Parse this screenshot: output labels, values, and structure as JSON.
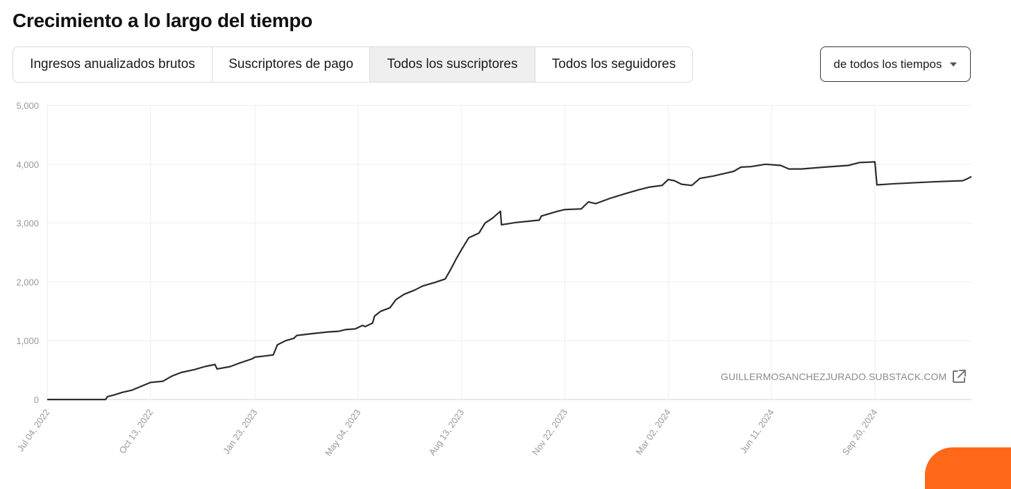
{
  "page": {
    "title": "Crecimiento a lo largo del tiempo"
  },
  "tabs": [
    {
      "label": "Ingresos anualizados brutos",
      "active": false
    },
    {
      "label": "Suscriptores de pago",
      "active": false
    },
    {
      "label": "Todos los suscriptores",
      "active": true
    },
    {
      "label": "Todos los seguidores",
      "active": false
    }
  ],
  "range_select": {
    "selected": "de todos los tiempos"
  },
  "watermark": {
    "text": "GUILLERMOSANCHEZJURADO.SUBSTACK.COM",
    "icon": "external-link-icon"
  },
  "colors": {
    "line": "#2b2b2b",
    "grid": "#eeeeee",
    "accent": "#ff6719",
    "tick_text": "#999999"
  },
  "chart_data": {
    "type": "line",
    "title": "",
    "xlabel": "",
    "ylabel": "",
    "ylim": [
      0,
      5000
    ],
    "y_ticks": [
      "0",
      "1,000",
      "2,000",
      "3,000",
      "4,000",
      "5,000"
    ],
    "x_ticks": [
      "Jul 04, 2022",
      "Oct 13, 2022",
      "Jan 23, 2023",
      "May 04, 2023",
      "Aug 13, 2023",
      "Nov 22, 2023",
      "Mar 02, 2024",
      "Jun 11, 2024",
      "Sep 20, 2024"
    ],
    "grid": true,
    "series": [
      {
        "values_note": "x are dates, y subscriber counts",
        "points": [
          [
            "2022-07-04",
            0
          ],
          [
            "2022-08-01",
            0
          ],
          [
            "2022-08-30",
            0
          ],
          [
            "2022-09-01",
            50
          ],
          [
            "2022-09-08",
            80
          ],
          [
            "2022-09-15",
            120
          ],
          [
            "2022-09-25",
            160
          ],
          [
            "2022-10-06",
            240
          ],
          [
            "2022-10-13",
            290
          ],
          [
            "2022-10-25",
            310
          ],
          [
            "2022-11-03",
            400
          ],
          [
            "2022-11-12",
            460
          ],
          [
            "2022-11-25",
            510
          ],
          [
            "2022-12-05",
            560
          ],
          [
            "2022-12-15",
            595
          ],
          [
            "2022-12-17",
            520
          ],
          [
            "2022-12-30",
            560
          ],
          [
            "2023-01-08",
            620
          ],
          [
            "2023-01-20",
            690
          ],
          [
            "2023-01-23",
            720
          ],
          [
            "2023-02-02",
            740
          ],
          [
            "2023-02-10",
            760
          ],
          [
            "2023-02-14",
            930
          ],
          [
            "2023-02-22",
            1000
          ],
          [
            "2023-03-02",
            1040
          ],
          [
            "2023-03-05",
            1090
          ],
          [
            "2023-03-20",
            1120
          ],
          [
            "2023-04-05",
            1150
          ],
          [
            "2023-04-15",
            1160
          ],
          [
            "2023-04-22",
            1190
          ],
          [
            "2023-05-01",
            1200
          ],
          [
            "2023-05-08",
            1260
          ],
          [
            "2023-05-11",
            1240
          ],
          [
            "2023-05-18",
            1300
          ],
          [
            "2023-05-20",
            1420
          ],
          [
            "2023-05-26",
            1500
          ],
          [
            "2023-06-04",
            1560
          ],
          [
            "2023-06-10",
            1700
          ],
          [
            "2023-06-18",
            1790
          ],
          [
            "2023-06-28",
            1860
          ],
          [
            "2023-07-06",
            1930
          ],
          [
            "2023-07-18",
            1990
          ],
          [
            "2023-07-28",
            2050
          ],
          [
            "2023-08-02",
            2200
          ],
          [
            "2023-08-08",
            2400
          ],
          [
            "2023-08-13",
            2550
          ],
          [
            "2023-08-20",
            2750
          ],
          [
            "2023-08-30",
            2830
          ],
          [
            "2023-09-05",
            3000
          ],
          [
            "2023-09-12",
            3080
          ],
          [
            "2023-09-20",
            3200
          ],
          [
            "2023-09-21",
            2970
          ],
          [
            "2023-10-05",
            3010
          ],
          [
            "2023-10-28",
            3050
          ],
          [
            "2023-10-30",
            3120
          ],
          [
            "2023-11-15",
            3200
          ],
          [
            "2023-11-22",
            3230
          ],
          [
            "2023-12-08",
            3240
          ],
          [
            "2023-12-15",
            3360
          ],
          [
            "2023-12-22",
            3330
          ],
          [
            "2024-01-05",
            3420
          ],
          [
            "2024-01-20",
            3500
          ],
          [
            "2024-02-01",
            3560
          ],
          [
            "2024-02-12",
            3610
          ],
          [
            "2024-02-25",
            3640
          ],
          [
            "2024-03-02",
            3740
          ],
          [
            "2024-03-08",
            3720
          ],
          [
            "2024-03-15",
            3660
          ],
          [
            "2024-03-25",
            3640
          ],
          [
            "2024-04-02",
            3760
          ],
          [
            "2024-04-15",
            3800
          ],
          [
            "2024-04-25",
            3840
          ],
          [
            "2024-05-05",
            3880
          ],
          [
            "2024-05-12",
            3950
          ],
          [
            "2024-05-22",
            3960
          ],
          [
            "2024-06-05",
            4000
          ],
          [
            "2024-06-20",
            3980
          ],
          [
            "2024-06-28",
            3920
          ],
          [
            "2024-07-10",
            3920
          ],
          [
            "2024-08-01",
            3950
          ],
          [
            "2024-08-25",
            3980
          ],
          [
            "2024-09-05",
            4030
          ],
          [
            "2024-09-20",
            4040
          ],
          [
            "2024-09-22",
            3650
          ],
          [
            "2024-10-10",
            3670
          ],
          [
            "2024-11-15",
            3700
          ],
          [
            "2024-12-15",
            3720
          ],
          [
            "2024-12-20",
            3760
          ],
          [
            "2024-12-24",
            3790
          ]
        ]
      }
    ]
  }
}
